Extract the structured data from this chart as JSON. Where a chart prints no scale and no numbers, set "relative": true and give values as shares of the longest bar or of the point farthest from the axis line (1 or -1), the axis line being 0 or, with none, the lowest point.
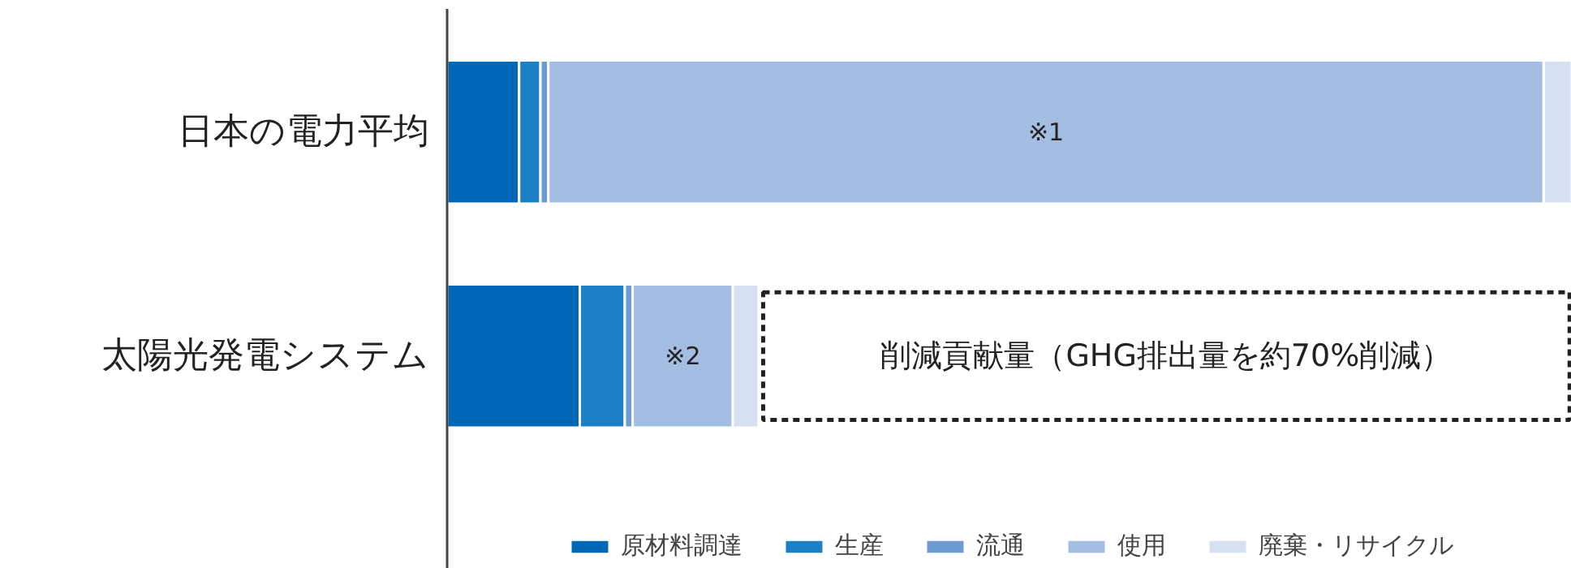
{
  "chart_data": {
    "type": "bar",
    "orientation": "horizontal",
    "stacked": true,
    "relative": true,
    "categories": [
      "日本の電力平均",
      "太陽光発電システム"
    ],
    "series": [
      {
        "name": "原材料調達",
        "color": "#0068b7",
        "values": [
          0.064,
          0.118
        ]
      },
      {
        "name": "生産",
        "color": "#1b80c4",
        "values": [
          0.019,
          0.04
        ]
      },
      {
        "name": "流通",
        "color": "#6c9bd2",
        "values": [
          0.007,
          0.007
        ]
      },
      {
        "name": "使用",
        "color": "#a4bde2",
        "values": [
          0.885,
          0.089
        ]
      },
      {
        "name": "廃棄・リサイクル",
        "color": "#d5e0f1",
        "values": [
          0.025,
          0.023
        ]
      }
    ],
    "annotations": [
      "※1",
      "※2",
      "削減貢献量（GHG排出量を約70%削減）"
    ],
    "legend": "bottom",
    "grid": false
  }
}
